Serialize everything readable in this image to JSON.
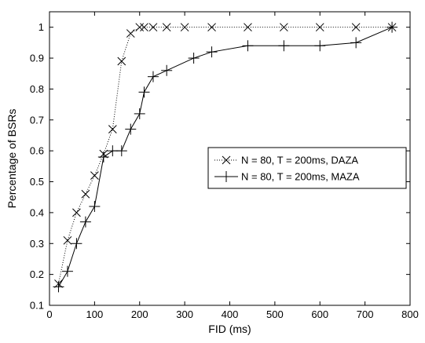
{
  "chart_data": {
    "type": "line",
    "title": "",
    "xlabel": "FID (ms)",
    "ylabel": "Percentage of BSRs",
    "xlim": [
      0,
      800
    ],
    "ylim": [
      0.1,
      1.05
    ],
    "xticks": [
      "0",
      "100",
      "200",
      "300",
      "400",
      "500",
      "600",
      "700",
      "800"
    ],
    "yticks": [
      "0.1",
      "0.2",
      "0.3",
      "0.4",
      "0.5",
      "0.6",
      "0.7",
      "0.8",
      "0.9",
      "1"
    ],
    "grid": false,
    "legend_position": "center-right",
    "series": [
      {
        "name": "N = 80, T = 200ms, DAZA",
        "marker": "x",
        "line_style": "dotted",
        "x": [
          20,
          40,
          60,
          80,
          100,
          120,
          140,
          160,
          180,
          200,
          210,
          230,
          260,
          300,
          360,
          440,
          520,
          600,
          680,
          760
        ],
        "y": [
          0.17,
          0.31,
          0.4,
          0.46,
          0.52,
          0.59,
          0.67,
          0.89,
          0.98,
          1.0,
          1.0,
          1.0,
          1.0,
          1.0,
          1.0,
          1.0,
          1.0,
          1.0,
          1.0,
          1.0
        ]
      },
      {
        "name": "N = 80, T = 200ms, MAZA",
        "marker": "+",
        "line_style": "solid",
        "x": [
          20,
          40,
          60,
          80,
          100,
          120,
          140,
          160,
          180,
          200,
          210,
          230,
          260,
          320,
          360,
          440,
          520,
          600,
          680,
          760
        ],
        "y": [
          0.16,
          0.21,
          0.3,
          0.37,
          0.42,
          0.58,
          0.6,
          0.6,
          0.67,
          0.72,
          0.79,
          0.84,
          0.86,
          0.9,
          0.92,
          0.94,
          0.94,
          0.94,
          0.95,
          1.0
        ]
      }
    ]
  }
}
